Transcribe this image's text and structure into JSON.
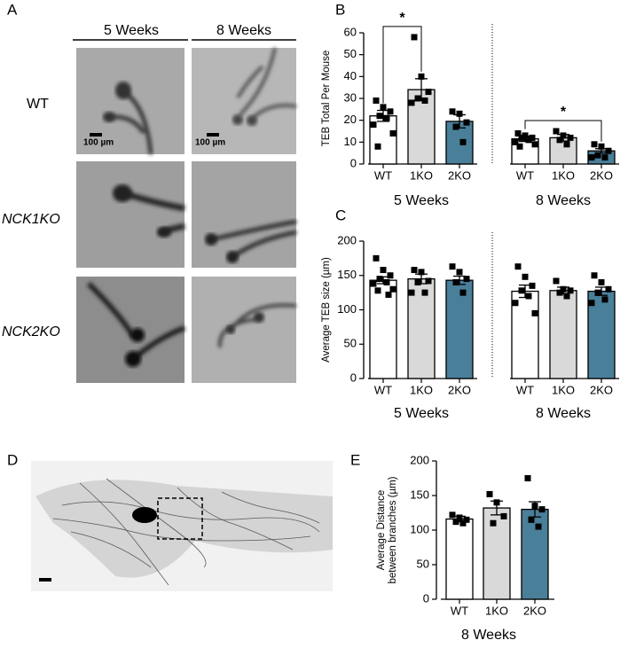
{
  "panel_labels": [
    "A",
    "B",
    "C",
    "D",
    "E"
  ],
  "panel_a": {
    "columns": [
      "5 Weeks",
      "8 Weeks"
    ],
    "rows": [
      "WT",
      "NCK1KO",
      "NCK2KO"
    ],
    "scale_bar": "100 µm"
  },
  "chart_data": [
    {
      "type": "bar",
      "ylabel": "TEB Total Per Mouse",
      "categories": [
        "WT",
        "1KO",
        "2KO",
        "WT",
        "1KO",
        "2KO"
      ],
      "group_labels": [
        "5 Weeks",
        "8 Weeks"
      ],
      "values": [
        22,
        34,
        19.5,
        11.5,
        12,
        6
      ],
      "errors": [
        2.5,
        5,
        3,
        1.2,
        1.5,
        1
      ],
      "points": [
        [
          29,
          26,
          24,
          22,
          21,
          18,
          14,
          8
        ],
        [
          58,
          40,
          33,
          30,
          29,
          28
        ],
        [
          24,
          23,
          19,
          17,
          10
        ],
        [
          14,
          13,
          12,
          12,
          11,
          10,
          9,
          8
        ],
        [
          15,
          13,
          12,
          11,
          9
        ],
        [
          9,
          8,
          6,
          4,
          3,
          3
        ]
      ],
      "colors": [
        "#ffffff",
        "#d9d9d9",
        "#4a7f99",
        "#ffffff",
        "#d9d9d9",
        "#4a7f99"
      ],
      "significance": [
        {
          "label": "*",
          "between": [
            0,
            1
          ]
        },
        {
          "label": "*",
          "between": [
            3,
            5
          ]
        }
      ],
      "separator": true,
      "ylim": [
        0,
        60
      ],
      "yticks": [
        0,
        10,
        20,
        30,
        40,
        50,
        60
      ]
    },
    {
      "type": "bar",
      "ylabel": "Average TEB size (µm)",
      "categories": [
        "WT",
        "1KO",
        "2KO",
        "WT",
        "1KO",
        "2KO"
      ],
      "group_labels": [
        "5 Weeks",
        "8 Weeks"
      ],
      "values": [
        143,
        145,
        143,
        127,
        128,
        127
      ],
      "errors": [
        5,
        7,
        6,
        9,
        5,
        6
      ],
      "points": [
        [
          175,
          158,
          150,
          145,
          140,
          138,
          130,
          128,
          122
        ],
        [
          158,
          155,
          142,
          140,
          125,
          125
        ],
        [
          163,
          155,
          145,
          140,
          125
        ],
        [
          163,
          148,
          135,
          128,
          120,
          110,
          95
        ],
        [
          142,
          130,
          128,
          125,
          120
        ],
        [
          150,
          140,
          130,
          125,
          115,
          110
        ]
      ],
      "colors": [
        "#ffffff",
        "#d9d9d9",
        "#4a7f99",
        "#ffffff",
        "#d9d9d9",
        "#4a7f99"
      ],
      "separator": true,
      "ylim": [
        0,
        200
      ],
      "yticks": [
        0,
        50,
        100,
        150,
        200
      ]
    },
    {
      "type": "bar",
      "ylabel": [
        "Average Distance",
        "between branches (µm)"
      ],
      "categories": [
        "WT",
        "1KO",
        "2KO"
      ],
      "group_labels": [
        "8 Weeks"
      ],
      "values": [
        116,
        132,
        130
      ],
      "errors": [
        4,
        10,
        11
      ],
      "points": [
        [
          122,
          118,
          115,
          112,
          110
        ],
        [
          152,
          140,
          120,
          110
        ],
        [
          175,
          135,
          130,
          115,
          105
        ]
      ],
      "colors": [
        "#ffffff",
        "#d9d9d9",
        "#4a7f99"
      ],
      "ylim": [
        0,
        200
      ],
      "yticks": [
        0,
        50,
        100,
        150,
        200
      ]
    }
  ]
}
